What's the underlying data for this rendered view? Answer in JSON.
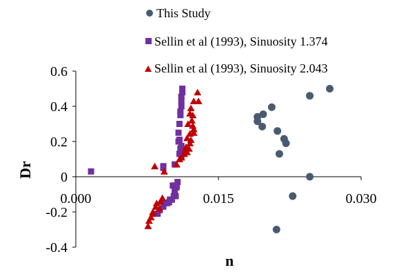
{
  "chart_data": {
    "type": "scatter",
    "title": "",
    "xlabel": "n",
    "ylabel": "Dr",
    "xlim": [
      0.0,
      0.03
    ],
    "ylim": [
      -0.4,
      0.6
    ],
    "x_ticks": [
      0.0,
      0.015,
      0.03
    ],
    "x_tick_labels": [
      "0.000",
      "0.015",
      "0.030"
    ],
    "y_ticks": [
      -0.4,
      -0.2,
      0,
      0.2,
      0.4,
      0.6
    ],
    "y_tick_labels": [
      "-0.4",
      "-0.2",
      "0",
      "0.2",
      "0.4",
      "0.6"
    ],
    "grid": false,
    "legend_position": "top",
    "series": [
      {
        "name": "This Study",
        "marker": "circle",
        "color": "#4a5b70",
        "points": [
          [
            0.0267,
            0.5
          ],
          [
            0.0246,
            0.46
          ],
          [
            0.0206,
            0.395
          ],
          [
            0.0197,
            0.355
          ],
          [
            0.0191,
            0.34
          ],
          [
            0.0191,
            0.315
          ],
          [
            0.0196,
            0.285
          ],
          [
            0.0212,
            0.26
          ],
          [
            0.0219,
            0.215
          ],
          [
            0.0221,
            0.19
          ],
          [
            0.0214,
            0.13
          ],
          [
            0.0246,
            0.0
          ],
          [
            0.0228,
            -0.11
          ],
          [
            0.0211,
            -0.3
          ]
        ]
      },
      {
        "name": "Sellin et al (1993), Sinuosity 1.374",
        "marker": "square",
        "color": "#7030a0",
        "points": [
          [
            0.0112,
            0.5
          ],
          [
            0.0112,
            0.48
          ],
          [
            0.0111,
            0.455
          ],
          [
            0.0111,
            0.43
          ],
          [
            0.0111,
            0.4
          ],
          [
            0.011,
            0.37
          ],
          [
            0.011,
            0.35
          ],
          [
            0.0109,
            0.3
          ],
          [
            0.0108,
            0.25
          ],
          [
            0.0109,
            0.21
          ],
          [
            0.0108,
            0.2
          ],
          [
            0.0111,
            0.175
          ],
          [
            0.011,
            0.16
          ],
          [
            0.0111,
            0.14
          ],
          [
            0.0109,
            0.13
          ],
          [
            0.0111,
            0.11
          ],
          [
            0.0104,
            0.07
          ],
          [
            0.0092,
            0.06
          ],
          [
            0.0092,
            0.05
          ],
          [
            0.0016,
            0.03
          ],
          [
            0.0102,
            -0.05
          ],
          [
            0.0106,
            -0.05
          ],
          [
            0.0107,
            -0.03
          ],
          [
            0.0106,
            -0.06
          ],
          [
            0.0104,
            -0.08
          ],
          [
            0.0105,
            -0.11
          ],
          [
            0.0103,
            -0.11
          ],
          [
            0.0101,
            -0.13
          ],
          [
            0.0099,
            -0.13
          ],
          [
            0.0098,
            -0.145
          ],
          [
            0.0094,
            -0.15
          ],
          [
            0.0096,
            -0.15
          ],
          [
            0.0092,
            -0.17
          ],
          [
            0.0088,
            -0.19
          ],
          [
            0.0086,
            -0.21
          ]
        ]
      },
      {
        "name": "Sellin et al (1993), Sinuosity 2.043",
        "marker": "triangle",
        "color": "#c00000",
        "points": [
          [
            0.0128,
            0.48
          ],
          [
            0.0129,
            0.43
          ],
          [
            0.0124,
            0.43
          ],
          [
            0.0121,
            0.39
          ],
          [
            0.012,
            0.36
          ],
          [
            0.0123,
            0.35
          ],
          [
            0.0122,
            0.32
          ],
          [
            0.0118,
            0.3
          ],
          [
            0.0123,
            0.29
          ],
          [
            0.0124,
            0.27
          ],
          [
            0.0124,
            0.25
          ],
          [
            0.012,
            0.245
          ],
          [
            0.0117,
            0.22
          ],
          [
            0.0121,
            0.21
          ],
          [
            0.012,
            0.19
          ],
          [
            0.0116,
            0.17
          ],
          [
            0.0119,
            0.16
          ],
          [
            0.0115,
            0.15
          ],
          [
            0.0117,
            0.14
          ],
          [
            0.0114,
            0.13
          ],
          [
            0.0111,
            0.11
          ],
          [
            0.0109,
            0.1
          ],
          [
            0.0106,
            0.07
          ],
          [
            0.0083,
            0.06
          ],
          [
            0.0093,
            0.03
          ],
          [
            0.0091,
            -0.12
          ],
          [
            0.0089,
            -0.14
          ],
          [
            0.0085,
            -0.15
          ],
          [
            0.0084,
            -0.17
          ],
          [
            0.0088,
            -0.18
          ],
          [
            0.0081,
            -0.2
          ],
          [
            0.0081,
            -0.21
          ],
          [
            0.0079,
            -0.23
          ],
          [
            0.0077,
            -0.25
          ],
          [
            0.0076,
            -0.28
          ]
        ]
      }
    ]
  }
}
